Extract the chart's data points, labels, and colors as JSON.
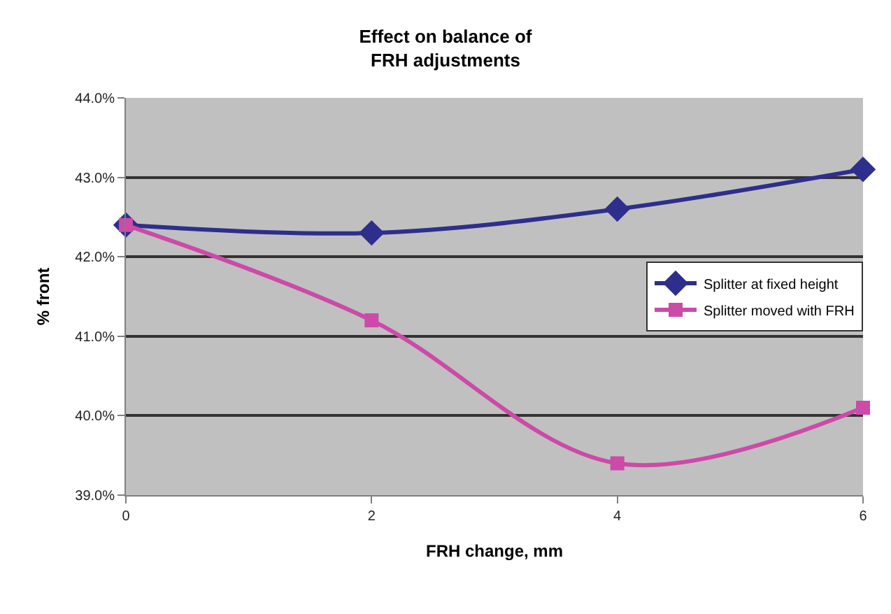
{
  "chart_data": {
    "type": "line",
    "title": "Effect on balance of\nFRH adjustments",
    "xlabel": "FRH change, mm",
    "ylabel": "% front",
    "x": [
      0,
      2,
      4,
      6
    ],
    "series": [
      {
        "name": "Splitter at fixed height",
        "color": "#2e2e8c",
        "values": [
          42.4,
          42.3,
          42.6,
          43.1
        ],
        "marker": "diamond"
      },
      {
        "name": "Splitter moved with FRH",
        "color": "#cc4aa8",
        "values": [
          42.4,
          41.2,
          39.4,
          40.1
        ],
        "marker": "square"
      }
    ],
    "xlim": [
      0,
      6
    ],
    "xticks": [
      0,
      2,
      4,
      6
    ],
    "ylim": [
      39.0,
      44.0
    ],
    "yticks": [
      {
        "value": 39.0,
        "label": "39.0%"
      },
      {
        "value": 40.0,
        "label": "40.0%"
      },
      {
        "value": 41.0,
        "label": "41.0%"
      },
      {
        "value": 42.0,
        "label": "42.0%"
      },
      {
        "value": 43.0,
        "label": "43.0%"
      },
      {
        "value": 44.0,
        "label": "44.0%"
      }
    ],
    "grid": "y",
    "legend": "right",
    "line_style": "solid"
  }
}
